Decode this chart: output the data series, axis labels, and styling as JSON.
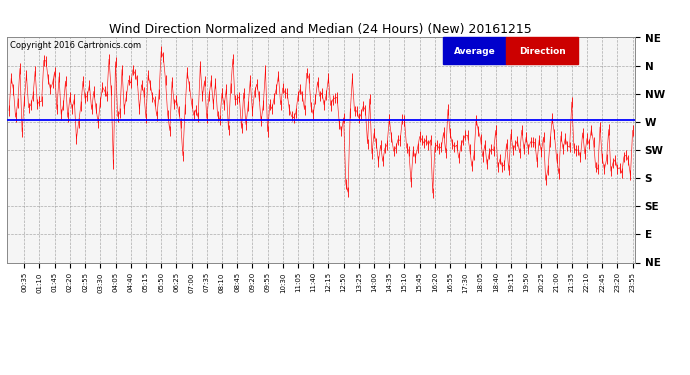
{
  "title": "Wind Direction Normalized and Median (24 Hours) (New) 20161215",
  "copyright": "Copyright 2016 Cartronics.com",
  "background_color": "#ffffff",
  "plot_bg_color": "#f5f5f5",
  "grid_color": "#999999",
  "y_label_names": [
    "NE",
    "E",
    "SE",
    "S",
    "SW",
    "W",
    "NW",
    "N",
    "NE"
  ],
  "y_tick_vals": [
    0,
    1,
    2,
    3,
    4,
    5,
    6,
    7,
    8
  ],
  "avg_direction_value": 5.05,
  "legend_avg_color": "#0000cc",
  "legend_dir_color": "#cc0000",
  "num_points": 288,
  "title_fontsize": 9,
  "copyright_fontsize": 6,
  "ytick_fontsize": 7.5,
  "xtick_fontsize": 5
}
